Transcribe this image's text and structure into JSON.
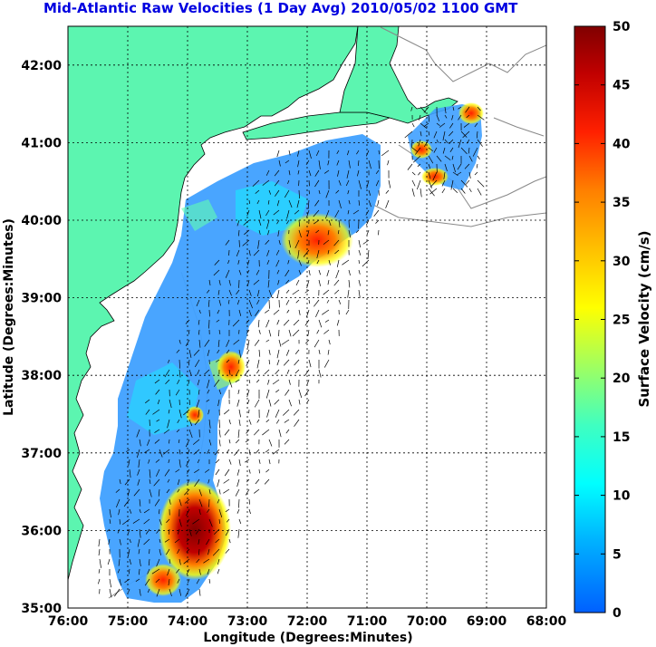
{
  "title": "Mid-Atlantic Raw Velocities (1 Day Avg) 2010/05/02 1100 GMT",
  "xlabel": "Longitude (Degrees:Minutes)",
  "ylabel": "Latitude (Degrees:Minutes)",
  "x_ticks": [
    "76:00",
    "75:00",
    "74:00",
    "73:00",
    "72:00",
    "71:00",
    "70:00",
    "69:00",
    "68:00"
  ],
  "y_ticks": [
    "35:00",
    "36:00",
    "37:00",
    "38:00",
    "39:00",
    "40:00",
    "41:00",
    "42:00"
  ],
  "colorbar": {
    "label": "Surface Velocity (cm/s)",
    "ticks": [
      "0",
      "5",
      "10",
      "15",
      "20",
      "25",
      "30",
      "35",
      "40",
      "45",
      "50"
    ]
  },
  "colors": {
    "land": "#5cf5b0",
    "title": "#0000e0",
    "grid": "#000000",
    "coast_outline": "#888888"
  }
}
